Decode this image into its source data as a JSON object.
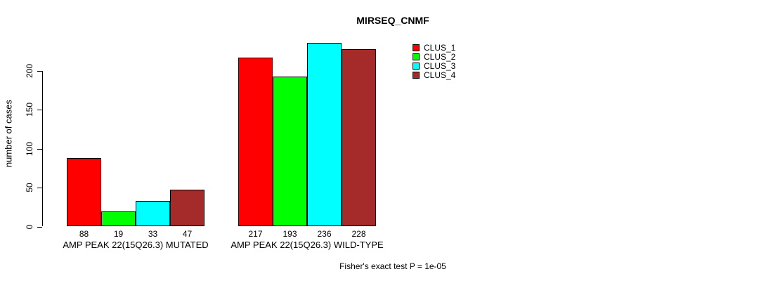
{
  "chart_data": {
    "type": "bar",
    "title": "MIRSEQ_CNMF",
    "ylabel": "number of cases",
    "xlabel": "",
    "ylim": [
      0,
      200
    ],
    "yticks": [
      0,
      50,
      100,
      150,
      200
    ],
    "grid": false,
    "legend_position": "top-right",
    "categories": [
      "AMP PEAK 22(15Q26.3) MUTATED",
      "AMP PEAK 22(15Q26.3) WILD-TYPE"
    ],
    "series": [
      {
        "name": "CLUS_1",
        "color": "#FF0000",
        "values": [
          88,
          217
        ]
      },
      {
        "name": "CLUS_2",
        "color": "#00FF00",
        "values": [
          19,
          193
        ]
      },
      {
        "name": "CLUS_3",
        "color": "#00FFFF",
        "values": [
          33,
          236
        ]
      },
      {
        "name": "CLUS_4",
        "color": "#A52A2A",
        "values": [
          47,
          228
        ]
      }
    ],
    "footnote": "Fisher's exact test P = 1e-05"
  }
}
